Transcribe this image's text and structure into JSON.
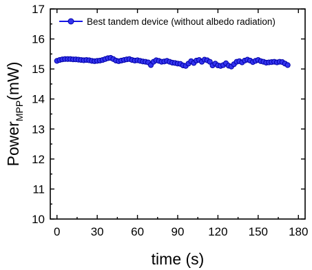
{
  "chart_data": {
    "type": "line",
    "xlabel": "time (s)",
    "ylabel_main": "Power",
    "ylabel_sub": "MPP",
    "ylabel_unit": "(mW)",
    "xlim": [
      -5,
      185
    ],
    "ylim": [
      10,
      17
    ],
    "xticks": [
      0,
      30,
      60,
      90,
      120,
      150,
      180
    ],
    "yticks": [
      10,
      11,
      12,
      13,
      14,
      15,
      16,
      17
    ],
    "legend_position": "top",
    "series": [
      {
        "name": "Best tandem device (without albedo radiation)",
        "color": "#1414e6",
        "marker": "circle",
        "x": [
          0,
          2,
          4,
          6,
          8,
          10,
          12,
          14,
          16,
          18,
          20,
          22,
          24,
          26,
          28,
          30,
          32,
          34,
          36,
          38,
          40,
          42,
          44,
          46,
          48,
          50,
          52,
          54,
          56,
          58,
          60,
          62,
          64,
          66,
          68,
          70,
          72,
          74,
          76,
          78,
          80,
          82,
          84,
          86,
          88,
          90,
          92,
          94,
          96,
          98,
          100,
          102,
          104,
          106,
          108,
          110,
          112,
          114,
          116,
          118,
          120,
          122,
          124,
          126,
          128,
          130,
          132,
          134,
          136,
          138,
          140,
          142,
          144,
          146,
          148,
          150,
          152,
          154,
          156,
          158,
          160,
          162,
          164,
          166,
          168,
          170,
          172
        ],
        "y": [
          15.27,
          15.3,
          15.32,
          15.33,
          15.33,
          15.33,
          15.32,
          15.32,
          15.31,
          15.3,
          15.29,
          15.3,
          15.29,
          15.27,
          15.26,
          15.27,
          15.28,
          15.3,
          15.33,
          15.36,
          15.37,
          15.33,
          15.28,
          15.26,
          15.28,
          15.3,
          15.32,
          15.33,
          15.3,
          15.28,
          15.29,
          15.27,
          15.25,
          15.24,
          15.22,
          15.13,
          15.24,
          15.29,
          15.27,
          15.24,
          15.25,
          15.27,
          15.24,
          15.21,
          15.2,
          15.18,
          15.17,
          15.12,
          15.1,
          15.18,
          15.26,
          15.2,
          15.28,
          15.3,
          15.24,
          15.31,
          15.29,
          15.24,
          15.12,
          15.18,
          15.12,
          15.1,
          15.13,
          15.19,
          15.11,
          15.08,
          15.16,
          15.24,
          15.26,
          15.22,
          15.28,
          15.31,
          15.28,
          15.23,
          15.27,
          15.3,
          15.26,
          15.24,
          15.21,
          15.22,
          15.23,
          15.24,
          15.22,
          15.24,
          15.23,
          15.18,
          15.13
        ]
      }
    ]
  }
}
